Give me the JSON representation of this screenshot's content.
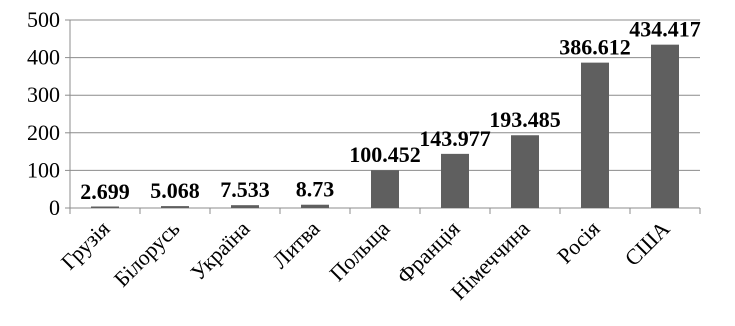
{
  "chart_data": {
    "type": "bar",
    "title": "",
    "xlabel": "",
    "ylabel": "",
    "categories": [
      "Грузія",
      "Білорусь",
      "Україна",
      "Литва",
      "Польща",
      "Франція",
      "Німеччина",
      "Росія",
      "США"
    ],
    "values": [
      2.699,
      5.068,
      7.533,
      8.73,
      100.452,
      143.977,
      193.485,
      386.612,
      434.417
    ],
    "data_labels": [
      "2.699",
      "5.068",
      "7.533",
      "8.73",
      "100.452",
      "143.977",
      "193.485",
      "386.612",
      "434.417"
    ],
    "ylim": [
      0,
      500
    ],
    "yticks": [
      0,
      100,
      200,
      300,
      400,
      500
    ],
    "ytick_labels": [
      "0",
      "100",
      "200",
      "300",
      "400",
      "500"
    ],
    "grid": true,
    "legend": "none",
    "colors": {
      "bar": "#5f5f5f",
      "grid": "#8c8c8c",
      "axis": "#8c8c8c",
      "text": "#000000"
    }
  }
}
